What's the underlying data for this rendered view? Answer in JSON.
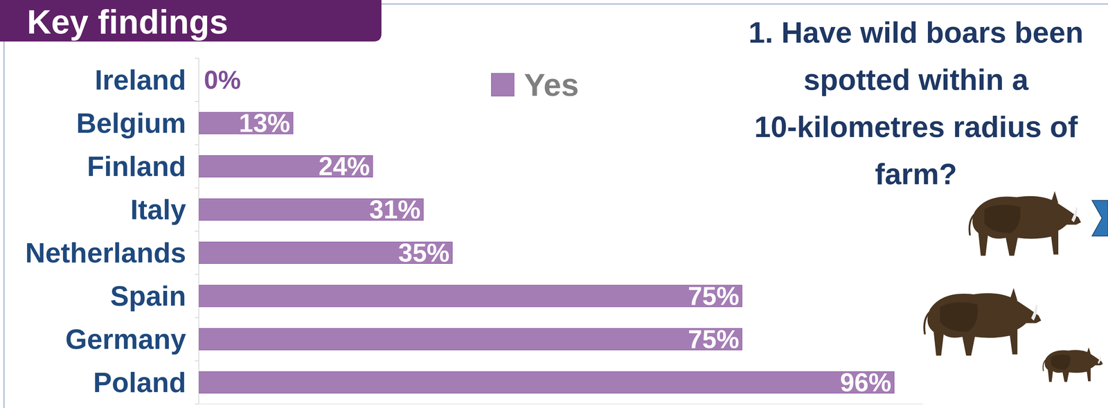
{
  "header": "Key findings",
  "chart_data": {
    "type": "bar",
    "orientation": "horizontal",
    "title": "1. Have wild boars been spotted within a 10-kilometres radius of farm?",
    "categories": [
      "Ireland",
      "Belgium",
      "Finland",
      "Italy",
      "Netherlands",
      "Spain",
      "Germany",
      "Poland"
    ],
    "series": [
      {
        "name": "Yes",
        "color": "#a57db5",
        "values": [
          0,
          13,
          24,
          31,
          35,
          75,
          75,
          96
        ],
        "value_labels": [
          "0%",
          "13%",
          "24%",
          "31%",
          "35%",
          "75%",
          "75%",
          "96%"
        ]
      }
    ],
    "xlim": [
      0,
      100
    ],
    "data_labels": true,
    "tick_labels": "y",
    "legend": "top",
    "grid": false
  }
}
